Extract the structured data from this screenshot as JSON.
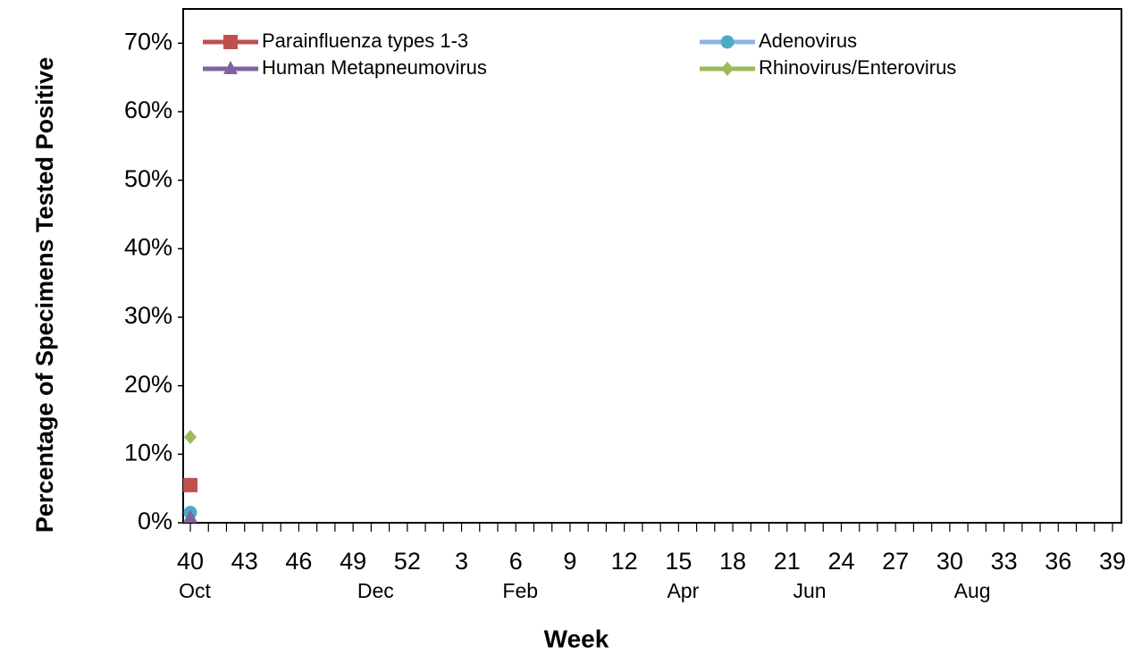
{
  "chart_data": {
    "type": "line",
    "y_label": "Percentage of Specimens Tested Positive",
    "x_label": "Week",
    "categories": [
      "40",
      null,
      null,
      "43",
      null,
      null,
      "46",
      null,
      null,
      "49",
      null,
      null,
      "52",
      null,
      null,
      "3",
      null,
      null,
      "6",
      null,
      null,
      "9",
      null,
      null,
      "12",
      null,
      null,
      "15",
      null,
      null,
      "18",
      null,
      null,
      "21",
      null,
      null,
      "24",
      null,
      null,
      "27",
      null,
      null,
      "30",
      null,
      null,
      "33",
      null,
      null,
      "36",
      null,
      null,
      "39"
    ],
    "month_labels": [
      "Oct",
      null,
      null,
      null,
      null,
      null,
      null,
      null,
      null,
      null,
      "Dec",
      null,
      null,
      null,
      null,
      null,
      null,
      null,
      "Feb",
      null,
      null,
      null,
      null,
      null,
      null,
      null,
      null,
      "Apr",
      null,
      null,
      null,
      null,
      null,
      null,
      "Jun",
      null,
      null,
      null,
      null,
      null,
      null,
      null,
      null,
      "Aug",
      null,
      null,
      null,
      null,
      null,
      null,
      null,
      null
    ],
    "ylim": [
      0,
      75
    ],
    "yticks": [
      {
        "value": 0,
        "label": "0%"
      },
      {
        "value": 10,
        "label": "10%"
      },
      {
        "value": 20,
        "label": "20%"
      },
      {
        "value": 30,
        "label": "30%"
      },
      {
        "value": 40,
        "label": "40%"
      },
      {
        "value": 50,
        "label": "50%"
      },
      {
        "value": 60,
        "label": "60%"
      },
      {
        "value": 70,
        "label": "70%"
      }
    ],
    "series": [
      {
        "name": "Parainfluenza types 1-3",
        "color": "#c0504d",
        "marker": "square",
        "values": [
          5.5,
          null,
          null,
          null,
          null,
          null,
          null,
          null,
          null,
          null,
          null,
          null,
          null,
          null,
          null,
          null,
          null,
          null,
          null,
          null,
          null,
          null,
          null,
          null,
          null,
          null,
          null,
          null,
          null,
          null,
          null,
          null,
          null,
          null,
          null,
          null,
          null,
          null,
          null,
          null,
          null,
          null,
          null,
          null,
          null,
          null,
          null,
          null,
          null,
          null,
          null,
          null
        ]
      },
      {
        "name": "Adenovirus",
        "color": "#8db3e2",
        "marker_color": "#4bacc6",
        "marker": "circle",
        "values": [
          1.5,
          null,
          null,
          null,
          null,
          null,
          null,
          null,
          null,
          null,
          null,
          null,
          null,
          null,
          null,
          null,
          null,
          null,
          null,
          null,
          null,
          null,
          null,
          null,
          null,
          null,
          null,
          null,
          null,
          null,
          null,
          null,
          null,
          null,
          null,
          null,
          null,
          null,
          null,
          null,
          null,
          null,
          null,
          null,
          null,
          null,
          null,
          null,
          null,
          null,
          null,
          null
        ]
      },
      {
        "name": "Human Metapneumovirus",
        "color": "#8064a2",
        "marker": "triangle",
        "values": [
          0.8,
          null,
          null,
          null,
          null,
          null,
          null,
          null,
          null,
          null,
          null,
          null,
          null,
          null,
          null,
          null,
          null,
          null,
          null,
          null,
          null,
          null,
          null,
          null,
          null,
          null,
          null,
          null,
          null,
          null,
          null,
          null,
          null,
          null,
          null,
          null,
          null,
          null,
          null,
          null,
          null,
          null,
          null,
          null,
          null,
          null,
          null,
          null,
          null,
          null,
          null,
          null
        ]
      },
      {
        "name": "Rhinovirus/Enterovirus",
        "color": "#9bbb59",
        "marker": "diamond",
        "values": [
          12.5,
          null,
          null,
          null,
          null,
          null,
          null,
          null,
          null,
          null,
          null,
          null,
          null,
          null,
          null,
          null,
          null,
          null,
          null,
          null,
          null,
          null,
          null,
          null,
          null,
          null,
          null,
          null,
          null,
          null,
          null,
          null,
          null,
          null,
          null,
          null,
          null,
          null,
          null,
          null,
          null,
          null,
          null,
          null,
          null,
          null,
          null,
          null,
          null,
          null,
          null,
          null
        ]
      }
    ],
    "legend": "top"
  }
}
